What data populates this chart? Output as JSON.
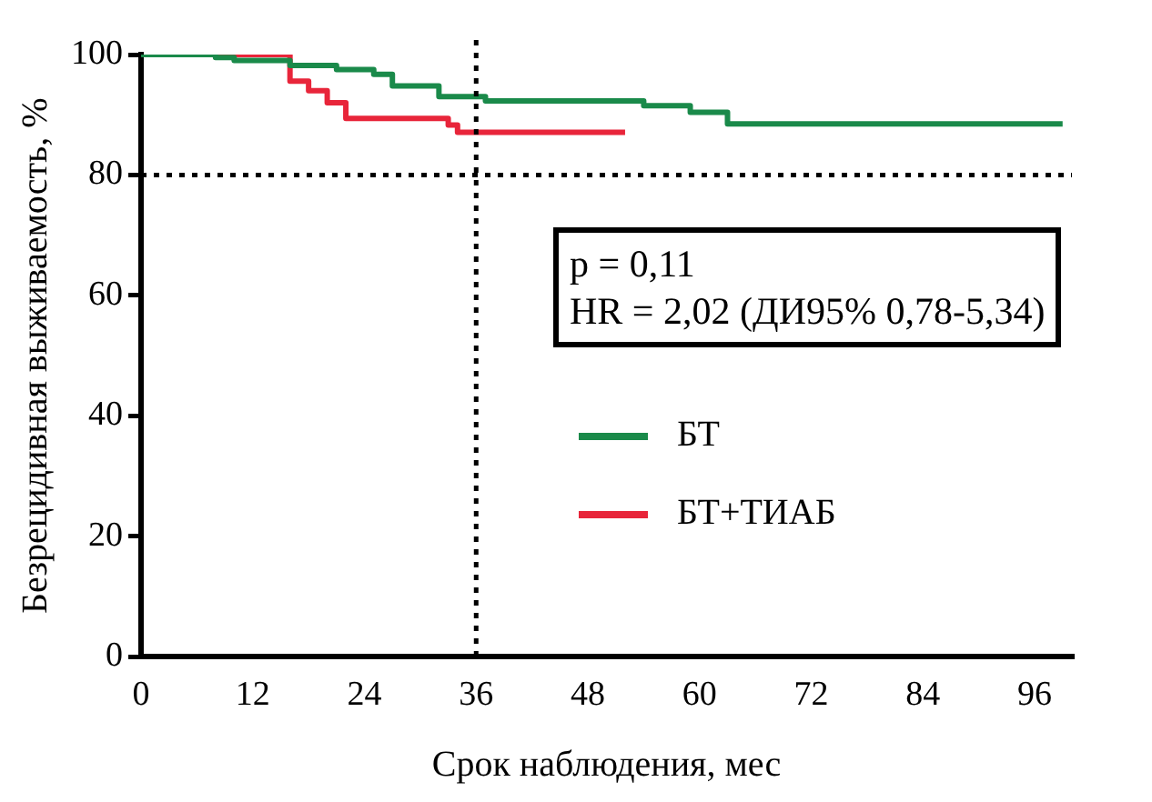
{
  "chart_data": {
    "type": "step",
    "xlabel": "Срок наблюдения, мес",
    "ylabel": "Безрецидивная выживаемость, %",
    "xlim": [
      0,
      100
    ],
    "xticks": [
      0,
      12,
      24,
      36,
      48,
      60,
      72,
      84,
      96
    ],
    "ylim": [
      0,
      100
    ],
    "yticks": [
      0,
      20,
      40,
      60,
      80,
      100
    ],
    "series": [
      {
        "name": "БТ",
        "color": "#1a8a4a",
        "x": [
          0,
          8,
          10,
          16,
          21,
          25,
          27,
          32,
          37,
          54,
          59,
          63,
          99
        ],
        "values": [
          100,
          99.5,
          99,
          98.2,
          97.5,
          96.7,
          94.8,
          93,
          92.3,
          91.5,
          90.4,
          88.5,
          88.5
        ]
      },
      {
        "name": "БТ+ТИАБ",
        "color": "#e8253a",
        "x": [
          0,
          16,
          18,
          20,
          22,
          33,
          34,
          52
        ],
        "values": [
          100,
          95.6,
          94,
          92,
          89.4,
          88.3,
          87.1,
          87.1
        ]
      }
    ],
    "ref_lines": [
      {
        "axis": "y",
        "value": 80,
        "color": "#000000",
        "line_style": "dotted"
      },
      {
        "axis": "x",
        "value": 36,
        "color": "#000000",
        "line_style": "dotted"
      }
    ],
    "annotations": [
      "p = 0,11",
      "HR = 2,02 (ДИ95% 0,78-5,34)"
    ],
    "legend": "right",
    "grid": false,
    "marker": "none",
    "line_style": "solid"
  }
}
